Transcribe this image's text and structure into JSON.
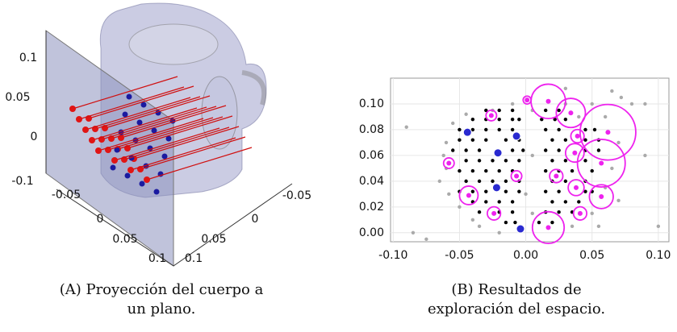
{
  "figure_a": {
    "z_ticks": [
      0.1,
      0.05,
      0,
      -0.1
    ],
    "x_ticks": [
      -0.05,
      0,
      0.05,
      0.1
    ],
    "y_ticks": [
      -0.05,
      0,
      0.05,
      0.1
    ],
    "caption": {
      "label": "(A)",
      "text": "Proyección del cuerpo a un plano."
    }
  },
  "chart_data": {
    "type": "scatter",
    "xlim": [
      -0.102,
      0.108
    ],
    "ylim": [
      -0.007,
      0.12
    ],
    "xticks": [
      {
        "value": -0.1,
        "label": "-0.10"
      },
      {
        "value": -0.05,
        "label": "-0.05"
      },
      {
        "value": 0,
        "label": "0.00"
      },
      {
        "value": 0.05,
        "label": "0.05"
      },
      {
        "value": 0.1,
        "label": "0.10"
      }
    ],
    "yticks": [
      {
        "value": 0,
        "label": "0.00"
      },
      {
        "value": 0.02,
        "label": "0.02"
      },
      {
        "value": 0.04,
        "label": "0.04"
      },
      {
        "value": 0.06,
        "label": "0.06"
      },
      {
        "value": 0.08,
        "label": "0.08"
      },
      {
        "value": 0.1,
        "label": "0.10"
      }
    ],
    "grid": true,
    "series": [
      {
        "color": "#aaaaaa",
        "x": [
          -0.09,
          -0.085,
          -0.075,
          -0.065,
          -0.06,
          -0.058,
          -0.062,
          -0.055,
          -0.045,
          -0.04,
          -0.05,
          -0.035,
          -0.02,
          -0.01,
          0.005,
          0.005,
          0,
          0.005,
          0.03,
          0.04,
          0.06,
          0.065,
          0.07,
          0.06,
          0.07,
          0.05,
          0.065,
          0.072,
          0.08,
          0.09,
          0.09,
          0.1,
          0.035,
          -0.025,
          -0.06,
          0.055,
          0.05,
          0.03
        ],
        "values": [
          0.082,
          0,
          -0.005,
          0.04,
          0.07,
          0.03,
          0.06,
          0.085,
          0.092,
          0.01,
          0.02,
          0.005,
          0,
          0.1,
          0.095,
          0.06,
          0.03,
          0.015,
          0.1,
          0.09,
          0.09,
          0.05,
          0.07,
          0.035,
          0.025,
          0.015,
          0.11,
          0.105,
          0.1,
          0.06,
          0.1,
          0.005,
          0.005,
          0.095,
          0.05,
          0.005,
          0.1,
          0.112
        ]
      },
      {
        "color": "#000000",
        "x": [
          -0.03,
          -0.02,
          -0.01,
          -0.04,
          -0.03,
          -0.02,
          -0.01,
          -0.005,
          -0.05,
          -0.04,
          -0.03,
          -0.02,
          -0.01,
          -0.05,
          -0.04,
          -0.03,
          -0.015,
          -0.005,
          -0.055,
          -0.045,
          -0.035,
          -0.01,
          -0.002,
          -0.045,
          -0.035,
          -0.025,
          -0.015,
          -0.005,
          -0.05,
          -0.04,
          -0.03,
          -0.02,
          -0.01,
          -0.045,
          -0.035,
          -0.025,
          -0.015,
          -0.005,
          -0.05,
          -0.04,
          -0.03,
          -0.015,
          -0.005,
          -0.04,
          -0.03,
          -0.02,
          -0.01,
          -0.035,
          -0.02,
          -0.01,
          -0.015,
          -0.008,
          0.015,
          0.025,
          0.012,
          0.022,
          0.03,
          0.015,
          0.025,
          0.045,
          0.052,
          0.02,
          0.03,
          0.045,
          0.055,
          0.015,
          0.025,
          0.045,
          0.055,
          0.02,
          0.03,
          0.045,
          0.015,
          0.025,
          0.035,
          0.05,
          0.02,
          0.03,
          0.045,
          0.015,
          0.025,
          0.045,
          0.05,
          0.02,
          0.03,
          0.04,
          0.015,
          0.025,
          0.035,
          0.01,
          0.02
        ],
        "values": [
          0.095,
          0.095,
          0.095,
          0.088,
          0.088,
          0.088,
          0.088,
          0.088,
          0.08,
          0.08,
          0.08,
          0.08,
          0.08,
          0.072,
          0.072,
          0.072,
          0.072,
          0.072,
          0.064,
          0.064,
          0.064,
          0.064,
          0.064,
          0.056,
          0.056,
          0.056,
          0.056,
          0.056,
          0.048,
          0.048,
          0.048,
          0.048,
          0.048,
          0.04,
          0.04,
          0.04,
          0.04,
          0.04,
          0.032,
          0.032,
          0.032,
          0.032,
          0.032,
          0.024,
          0.024,
          0.024,
          0.024,
          0.016,
          0.016,
          0.016,
          0.008,
          0.008,
          0.095,
          0.095,
          0.088,
          0.088,
          0.088,
          0.08,
          0.08,
          0.08,
          0.08,
          0.072,
          0.072,
          0.072,
          0.072,
          0.064,
          0.064,
          0.064,
          0.064,
          0.056,
          0.056,
          0.056,
          0.048,
          0.048,
          0.048,
          0.048,
          0.04,
          0.04,
          0.04,
          0.032,
          0.032,
          0.032,
          0.032,
          0.024,
          0.024,
          0.024,
          0.016,
          0.016,
          0.016,
          0.008,
          0.008
        ]
      },
      {
        "color": "#2a2ad0",
        "x": [
          -0.044,
          -0.021,
          -0.022,
          -0.007,
          -0.004
        ],
        "values": [
          0.078,
          0.062,
          0.035,
          0.075,
          0.003
        ]
      },
      {
        "color": "#ee22ee",
        "x": [
          -0.026,
          0.017,
          0.034,
          0.062,
          0.057,
          0.039,
          0.037,
          0.023,
          0.038,
          0.057,
          0.041,
          0.017,
          -0.043,
          -0.024,
          -0.058,
          -0.007,
          0.001
        ],
        "values": [
          0.091,
          0.102,
          0.093,
          0.078,
          0.054,
          0.075,
          0.062,
          0.044,
          0.035,
          0.028,
          0.015,
          0.004,
          0.029,
          0.015,
          0.054,
          0.044,
          0.103
        ],
        "sizes": [
          0.004,
          0.013,
          0.011,
          0.021,
          0.018,
          0.005,
          0.007,
          0.005,
          0.006,
          0.009,
          0.005,
          0.012,
          0.007,
          0.005,
          0.004,
          0.004,
          0.003
        ]
      }
    ]
  },
  "figure_b": {
    "caption": {
      "label": "(B)",
      "text": "Resultados de exploración del espacio."
    }
  }
}
